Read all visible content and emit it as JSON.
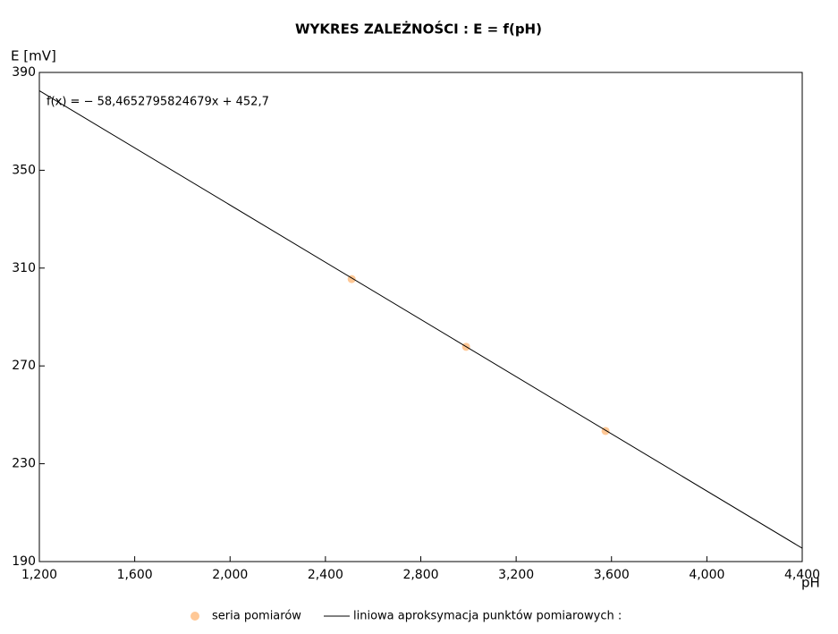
{
  "chart_data": {
    "type": "scatter",
    "title": "WYKRES ZALEŻNOŚCI :  E = f(pH)",
    "y_label": "E [mV]",
    "x_label": "pH",
    "annotation": "f(x) = − 58,4652795824679x + 452,7",
    "xlim": [
      1.2,
      4.4
    ],
    "ylim": [
      190,
      390
    ],
    "xticks": [
      {
        "value": 1.2,
        "label": "1,200"
      },
      {
        "value": 1.6,
        "label": "1,600"
      },
      {
        "value": 2.0,
        "label": "2,000"
      },
      {
        "value": 2.4,
        "label": "2,400"
      },
      {
        "value": 2.8,
        "label": "2,800"
      },
      {
        "value": 3.2,
        "label": "3,200"
      },
      {
        "value": 3.6,
        "label": "3,600"
      },
      {
        "value": 4.0,
        "label": "4,000"
      },
      {
        "value": 4.4,
        "label": "4,400"
      }
    ],
    "yticks": [
      190,
      230,
      270,
      310,
      350,
      390
    ],
    "series": [
      {
        "name": "seria pomiarów",
        "type": "scatter",
        "color": "#ffc896",
        "x": [
          2.51,
          2.99,
          3.575
        ],
        "values": [
          305.5,
          277.8,
          243.4
        ]
      },
      {
        "name": "liniowa aproksymacja punktów pomiarowych :",
        "type": "line",
        "color": "#000000",
        "x": [
          1.2,
          4.4
        ],
        "values": [
          382.54,
          195.45
        ]
      }
    ]
  }
}
